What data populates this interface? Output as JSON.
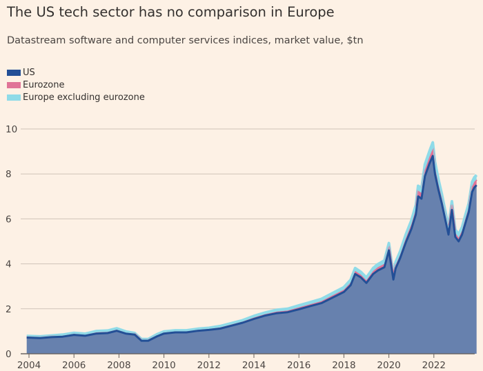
{
  "chart_data": {
    "type": "area",
    "stacked": true,
    "title": "The US tech sector has no comparison in Europe",
    "subtitle": "Datastream software and computer services indices, market value, $tn",
    "xlabel": "",
    "ylabel": "",
    "ylim": [
      0,
      10
    ],
    "yticks": [
      "0",
      "2",
      "4",
      "6",
      "8",
      "10"
    ],
    "xticks": [
      "2004",
      "2006",
      "2008",
      "2010",
      "2012",
      "2014",
      "2016",
      "2018",
      "2020",
      "2022"
    ],
    "grid": true,
    "legend_position": "top-left",
    "x": [
      2003.9,
      2004.5,
      2005,
      2005.5,
      2006,
      2006.5,
      2007,
      2007.5,
      2007.9,
      2008.3,
      2008.7,
      2009.0,
      2009.3,
      2009.7,
      2010,
      2010.5,
      2011,
      2011.5,
      2012,
      2012.5,
      2013,
      2013.5,
      2014,
      2014.5,
      2015,
      2015.5,
      2016,
      2016.5,
      2017,
      2017.5,
      2018,
      2018.3,
      2018.5,
      2018.75,
      2019,
      2019.3,
      2019.5,
      2019.8,
      2020.0,
      2020.2,
      2020.3,
      2020.5,
      2020.75,
      2021.0,
      2021.2,
      2021.3,
      2021.45,
      2021.6,
      2021.8,
      2021.95,
      2022.05,
      2022.2,
      2022.35,
      2022.5,
      2022.65,
      2022.8,
      2022.95,
      2023.1,
      2023.25,
      2023.4,
      2023.55,
      2023.7,
      2023.8,
      2023.9
    ],
    "series": [
      {
        "name": "US",
        "color": "#234f96",
        "values": [
          0.72,
          0.7,
          0.74,
          0.76,
          0.84,
          0.8,
          0.9,
          0.92,
          1.02,
          0.9,
          0.85,
          0.58,
          0.58,
          0.78,
          0.9,
          0.95,
          0.95,
          1.02,
          1.06,
          1.12,
          1.25,
          1.38,
          1.55,
          1.7,
          1.8,
          1.85,
          1.98,
          2.12,
          2.25,
          2.5,
          2.75,
          3.05,
          3.55,
          3.4,
          3.15,
          3.55,
          3.7,
          3.85,
          4.6,
          3.3,
          3.8,
          4.25,
          4.95,
          5.55,
          6.2,
          7.0,
          6.9,
          7.9,
          8.45,
          8.8,
          8.0,
          7.3,
          6.7,
          6.0,
          5.3,
          6.4,
          5.2,
          5.0,
          5.3,
          5.8,
          6.3,
          7.2,
          7.4,
          7.5
        ]
      },
      {
        "name": "Eurozone",
        "color": "#e07497",
        "values": [
          0.03,
          0.03,
          0.03,
          0.04,
          0.04,
          0.04,
          0.05,
          0.05,
          0.05,
          0.04,
          0.03,
          0.03,
          0.03,
          0.04,
          0.04,
          0.04,
          0.04,
          0.04,
          0.04,
          0.05,
          0.05,
          0.05,
          0.06,
          0.06,
          0.07,
          0.07,
          0.08,
          0.08,
          0.09,
          0.1,
          0.1,
          0.12,
          0.13,
          0.12,
          0.12,
          0.13,
          0.14,
          0.15,
          0.16,
          0.12,
          0.14,
          0.15,
          0.18,
          0.2,
          0.22,
          0.25,
          0.25,
          0.28,
          0.3,
          0.32,
          0.28,
          0.25,
          0.22,
          0.2,
          0.18,
          0.2,
          0.17,
          0.16,
          0.17,
          0.19,
          0.2,
          0.24,
          0.25,
          0.25
        ]
      },
      {
        "name": "Europe excluding eurozone",
        "color": "#8fdbe8",
        "values": [
          0.04,
          0.04,
          0.04,
          0.05,
          0.05,
          0.05,
          0.06,
          0.06,
          0.06,
          0.05,
          0.04,
          0.04,
          0.04,
          0.05,
          0.05,
          0.05,
          0.05,
          0.05,
          0.05,
          0.06,
          0.06,
          0.06,
          0.07,
          0.07,
          0.08,
          0.08,
          0.09,
          0.09,
          0.1,
          0.1,
          0.11,
          0.12,
          0.13,
          0.12,
          0.12,
          0.13,
          0.14,
          0.15,
          0.16,
          0.12,
          0.14,
          0.15,
          0.17,
          0.18,
          0.2,
          0.22,
          0.22,
          0.24,
          0.25,
          0.28,
          0.25,
          0.22,
          0.2,
          0.18,
          0.17,
          0.18,
          0.16,
          0.15,
          0.16,
          0.17,
          0.18,
          0.2,
          0.2,
          0.2
        ]
      }
    ],
    "area_fill": "#6781ae"
  }
}
